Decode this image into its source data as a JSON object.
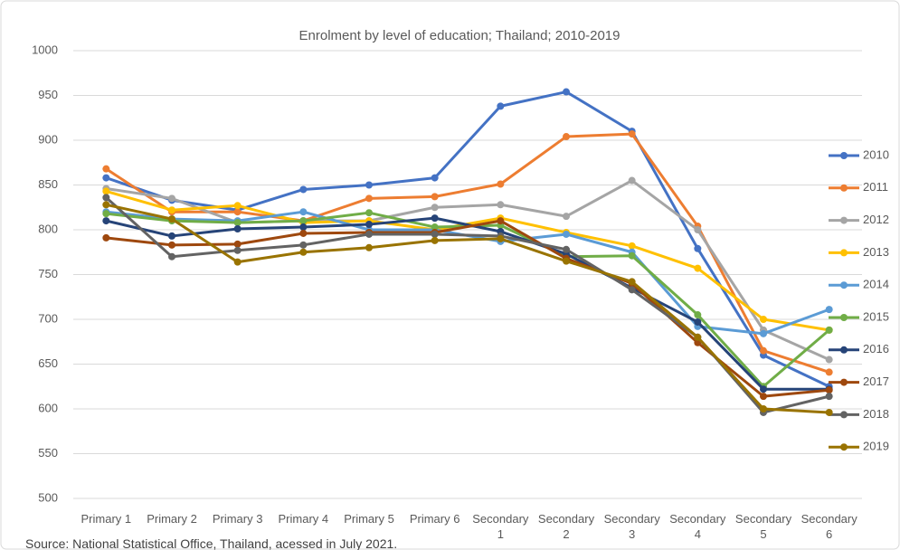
{
  "chart_data": {
    "type": "line",
    "title": "Enrolment by level of education; Thailand; 2010-2019",
    "source": "Source: National Statistical Office, Thailand, acessed in July 2021.",
    "categories": [
      "Primary 1",
      "Primary 2",
      "Primary 3",
      "Primary 4",
      "Primary 5",
      "Primary 6",
      "Secondary 1",
      "Secondary 2",
      "Secondary 3",
      "Secondary 4",
      "Secondary 5",
      "Secondary 6"
    ],
    "ylim": [
      500,
      1000
    ],
    "yticks": [
      500,
      550,
      600,
      650,
      700,
      750,
      800,
      850,
      900,
      950,
      1000
    ],
    "grid": true,
    "legend": "right",
    "series": [
      {
        "name": "2010",
        "color": "#4472c4",
        "values": [
          858,
          833,
          822,
          845,
          850,
          858,
          938,
          954,
          910,
          779,
          660,
          625
        ]
      },
      {
        "name": "2011",
        "color": "#ed7d31",
        "values": [
          868,
          820,
          820,
          810,
          835,
          837,
          851,
          904,
          907,
          804,
          665,
          641
        ]
      },
      {
        "name": "2012",
        "color": "#a5a5a5",
        "values": [
          846,
          835,
          808,
          810,
          810,
          825,
          828,
          815,
          855,
          800,
          688,
          655
        ]
      },
      {
        "name": "2013",
        "color": "#ffc000",
        "values": [
          843,
          822,
          827,
          808,
          810,
          800,
          813,
          797,
          782,
          757,
          700,
          688
        ]
      },
      {
        "name": "2014",
        "color": "#5b9bd5",
        "values": [
          820,
          812,
          810,
          820,
          800,
          800,
          787,
          795,
          775,
          692,
          684,
          711
        ]
      },
      {
        "name": "2015",
        "color": "#70ad47",
        "values": [
          818,
          810,
          808,
          810,
          819,
          803,
          805,
          770,
          771,
          705,
          625,
          688
        ]
      },
      {
        "name": "2016",
        "color": "#264478",
        "values": [
          810,
          793,
          801,
          803,
          806,
          813,
          798,
          773,
          735,
          697,
          622,
          622
        ]
      },
      {
        "name": "2017",
        "color": "#9e480e",
        "values": [
          791,
          783,
          784,
          796,
          797,
          797,
          810,
          768,
          740,
          674,
          614,
          621
        ]
      },
      {
        "name": "2018",
        "color": "#636363",
        "values": [
          836,
          770,
          777,
          783,
          795,
          795,
          793,
          778,
          733,
          680,
          596,
          614
        ]
      },
      {
        "name": "2019",
        "color": "#997300",
        "values": [
          828,
          812,
          764,
          775,
          780,
          788,
          790,
          765,
          742,
          680,
          600,
          596
        ]
      }
    ]
  }
}
